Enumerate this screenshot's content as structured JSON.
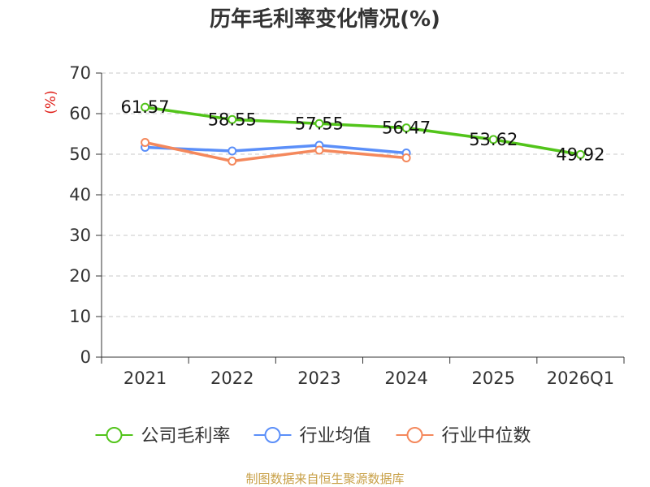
{
  "chart_data": {
    "type": "line",
    "title": "历年毛利率变化情况(%)",
    "ylabel": "(%)",
    "xlabel": "",
    "ylim": [
      0,
      70
    ],
    "yticks": [
      0,
      10,
      20,
      30,
      40,
      50,
      60,
      70
    ],
    "grid": true,
    "categories": [
      "2021",
      "2022",
      "2023",
      "2024",
      "2025",
      "2026Q1"
    ],
    "series": [
      {
        "name": "公司毛利率",
        "color": "#52c41a",
        "values": [
          61.57,
          58.55,
          57.55,
          56.47,
          53.62,
          49.92
        ],
        "labels": [
          "61.57",
          "58.55",
          "57.55",
          "56.47",
          "53.62",
          "49.92"
        ],
        "show_labels": true
      },
      {
        "name": "行业均值",
        "color": "#5b8ff9",
        "values": [
          51.7,
          50.8,
          52.2,
          50.3,
          null,
          null
        ],
        "show_labels": false
      },
      {
        "name": "行业中位数",
        "color": "#f4885c",
        "values": [
          52.9,
          48.3,
          51.0,
          49.1,
          null,
          null
        ],
        "show_labels": false
      }
    ],
    "legend_position": "bottom"
  },
  "source_text": "制图数据来自恒生聚源数据库"
}
